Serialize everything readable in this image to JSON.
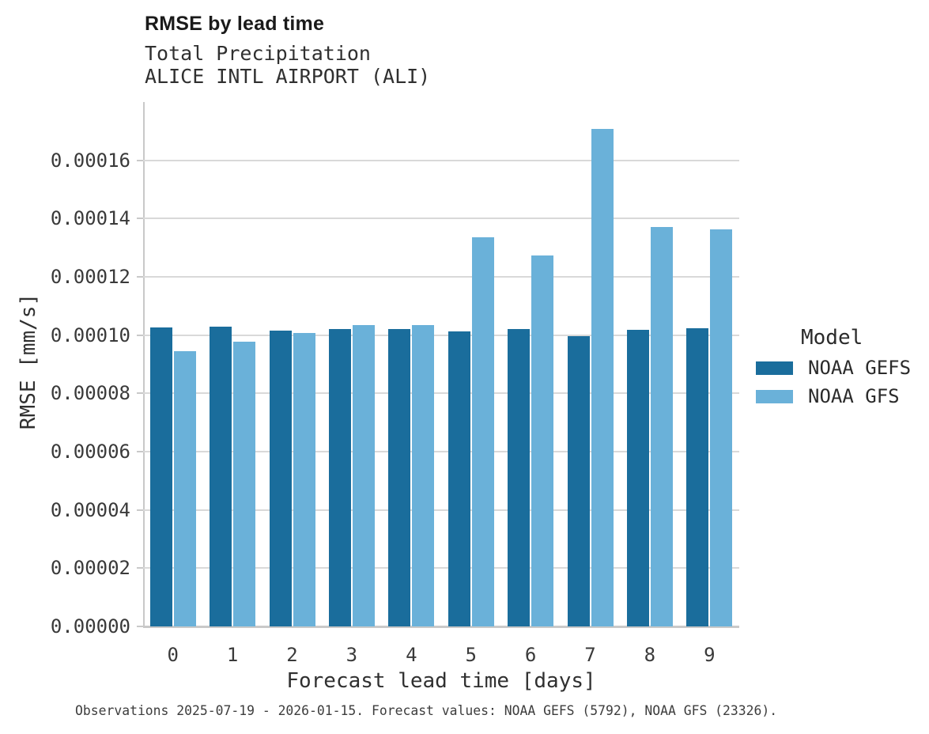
{
  "header": {
    "title": "RMSE by lead time",
    "subtitle_lines": [
      "Total Precipitation",
      "ALICE INTL AIRPORT (ALI)"
    ]
  },
  "chart_data": {
    "type": "bar",
    "title": "RMSE by lead time",
    "subtitle": "Total Precipitation",
    "station": "ALICE INTL AIRPORT (ALI)",
    "xlabel": "Forecast lead time [days]",
    "ylabel": "RMSE [mm/s]",
    "categories": [
      "0",
      "1",
      "2",
      "3",
      "4",
      "5",
      "6",
      "7",
      "8",
      "9"
    ],
    "series": [
      {
        "name": "NOAA GEFS",
        "color": "#1a6d9c",
        "values": [
          0.0001025,
          0.0001029,
          0.0001015,
          0.0001022,
          0.000102,
          0.0001013,
          0.0001022,
          9.97e-05,
          0.0001019,
          0.0001024
        ]
      },
      {
        "name": "NOAA GFS",
        "color": "#6ab1d9",
        "values": [
          9.44e-05,
          9.77e-05,
          0.0001006,
          0.0001035,
          0.0001035,
          0.0001337,
          0.0001272,
          0.0001709,
          0.000137,
          0.0001362
        ]
      }
    ],
    "ylim": [
      0,
      0.00018
    ],
    "yticks": [
      0.0,
      2e-05,
      4e-05,
      6e-05,
      8e-05,
      0.0001,
      0.00012,
      0.00014,
      0.00016
    ],
    "ytick_labels": [
      "0.00000",
      "0.00002",
      "0.00004",
      "0.00006",
      "0.00008",
      "0.00010",
      "0.00012",
      "0.00014",
      "0.00016"
    ],
    "grid": "horizontal",
    "legend_title": "Model",
    "legend_position": "right"
  },
  "footer": {
    "caption": "Observations 2025-07-19 - 2026-01-15. Forecast values: NOAA GEFS (5792), NOAA GFS (23326)."
  }
}
